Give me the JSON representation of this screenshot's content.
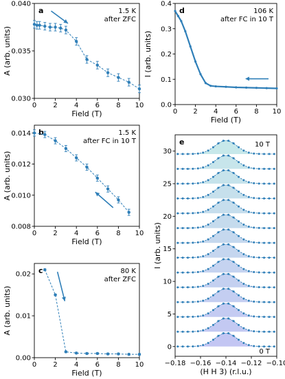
{
  "chart_data": [
    {
      "panel": "a",
      "type": "scatter",
      "annotation": [
        "1.5 K",
        "after ZFC"
      ],
      "xlabel": "Field (T)",
      "ylabel": "A (arb. units)",
      "xlim": [
        0,
        10
      ],
      "ylim": [
        0.03,
        0.04
      ],
      "xticks": [
        "0",
        "2",
        "4",
        "6",
        "8",
        "10"
      ],
      "yticks": [
        "0.030",
        "0.035",
        "0.040"
      ],
      "arrow": "down-right",
      "color": "#2f7fb8",
      "series": [
        {
          "x": [
            0,
            0.25,
            0.5,
            1,
            1.5,
            2,
            2.5,
            3,
            4,
            5,
            6,
            7,
            8,
            9,
            10
          ],
          "y": [
            0.0378,
            0.0377,
            0.0377,
            0.0376,
            0.0375,
            0.0375,
            0.0374,
            0.0372,
            0.036,
            0.0341,
            0.0335,
            0.0327,
            0.0322,
            0.0317,
            0.031
          ],
          "err": [
            0.0004,
            0.0004,
            0.0004,
            0.0004,
            0.0004,
            0.0004,
            0.0004,
            0.0004,
            0.0004,
            0.0004,
            0.0004,
            0.0004,
            0.0004,
            0.0004,
            0.0004
          ]
        }
      ]
    },
    {
      "panel": "d",
      "type": "line",
      "annotation": [
        "106 K",
        "after FC in 10 T"
      ],
      "xlabel": "Field (T)",
      "ylabel": "I (arb. units)",
      "xlim": [
        0,
        10
      ],
      "ylim": [
        0,
        0.4
      ],
      "xticks": [
        "0",
        "2",
        "4",
        "6",
        "8",
        "10"
      ],
      "yticks": [
        "0.0",
        "0.1",
        "0.2",
        "0.3",
        "0.4"
      ],
      "arrow": "left",
      "color": "#2f7fb8",
      "series": [
        {
          "x": [
            0,
            0.3,
            0.6,
            1.0,
            1.5,
            2.0,
            2.5,
            3.0,
            3.5,
            4,
            5,
            6,
            7,
            8,
            9,
            10
          ],
          "y": [
            0.37,
            0.35,
            0.33,
            0.29,
            0.23,
            0.17,
            0.12,
            0.085,
            0.074,
            0.072,
            0.07,
            0.068,
            0.067,
            0.066,
            0.065,
            0.064
          ]
        }
      ]
    },
    {
      "panel": "b",
      "type": "scatter",
      "annotation": [
        "1.5 K",
        "after FC in 10 T"
      ],
      "xlabel": "Field (T)",
      "ylabel": "A (arb. units)",
      "xlim": [
        0,
        10
      ],
      "ylim": [
        0.008,
        0.0145
      ],
      "xticks": [
        "0",
        "2",
        "4",
        "6",
        "8",
        "10"
      ],
      "yticks": [
        "0.008",
        "0.010",
        "0.012",
        "0.014"
      ],
      "arrow": "up-left",
      "color": "#2f7fb8",
      "series": [
        {
          "x": [
            0,
            1,
            2,
            3,
            4,
            5,
            6,
            7,
            8,
            9
          ],
          "y": [
            0.014,
            0.0139,
            0.0135,
            0.013,
            0.0124,
            0.0118,
            0.0111,
            0.0104,
            0.0097,
            0.0089
          ],
          "err": [
            0.0002,
            0.0002,
            0.0002,
            0.0002,
            0.0002,
            0.0002,
            0.0002,
            0.0002,
            0.0002,
            0.0002
          ]
        }
      ]
    },
    {
      "panel": "c",
      "type": "scatter",
      "annotation": [
        "80 K",
        "after ZFC"
      ],
      "xlabel": "Field (T)",
      "ylabel": "A (arb. units)",
      "xlim": [
        0,
        10
      ],
      "ylim": [
        0,
        0.0225
      ],
      "xticks": [
        "0",
        "2",
        "4",
        "6",
        "8",
        "10"
      ],
      "yticks": [
        "0.00",
        "0.01",
        "0.02"
      ],
      "arrow": "down",
      "color": "#2f7fb8",
      "series": [
        {
          "x": [
            1,
            2,
            3,
            4,
            5,
            6,
            7,
            8,
            9,
            10
          ],
          "y": [
            0.021,
            0.015,
            0.0014,
            0.0011,
            0.001,
            0.001,
            0.0009,
            0.0009,
            0.0008,
            0.0008
          ],
          "err": [
            0.0002,
            0.0002,
            0.0002,
            0.0002,
            0.0002,
            0.0002,
            0.0002,
            0.0002,
            0.0002,
            0.0002
          ]
        }
      ]
    },
    {
      "panel": "e",
      "type": "line",
      "annotation_top": "10 T",
      "annotation_bottom": "0 T",
      "xlabel": "(H H 3) (r.l.u.)",
      "ylabel": "I (arb. units)",
      "xlim": [
        -0.18,
        -0.1
      ],
      "ylim": [
        -1.5,
        32.5
      ],
      "xticks": [
        "−0.18",
        "−0.16",
        "−0.14",
        "−0.12",
        "−0.10"
      ],
      "yticks": [
        "0",
        "5",
        "10",
        "15",
        "20",
        "25",
        "30"
      ],
      "color": "#2f7fb8",
      "fill_colors": [
        "#c3c6f3",
        "#c7e8ea"
      ],
      "stack_offsets": [
        0,
        2.27,
        4.55,
        6.82,
        9.09,
        11.36,
        13.64,
        15.91,
        18.18,
        20.45,
        22.73,
        25.0,
        27.27,
        29.55
      ],
      "peak_center": -0.14,
      "peak_width": 0.0085,
      "peak_height": 2.1,
      "x": [
        -0.178,
        -0.174,
        -0.17,
        -0.166,
        -0.162,
        -0.158,
        -0.154,
        -0.15,
        -0.146,
        -0.142,
        -0.138,
        -0.134,
        -0.13,
        -0.126,
        -0.122,
        -0.118,
        -0.114,
        -0.11,
        -0.106,
        -0.102
      ]
    }
  ]
}
